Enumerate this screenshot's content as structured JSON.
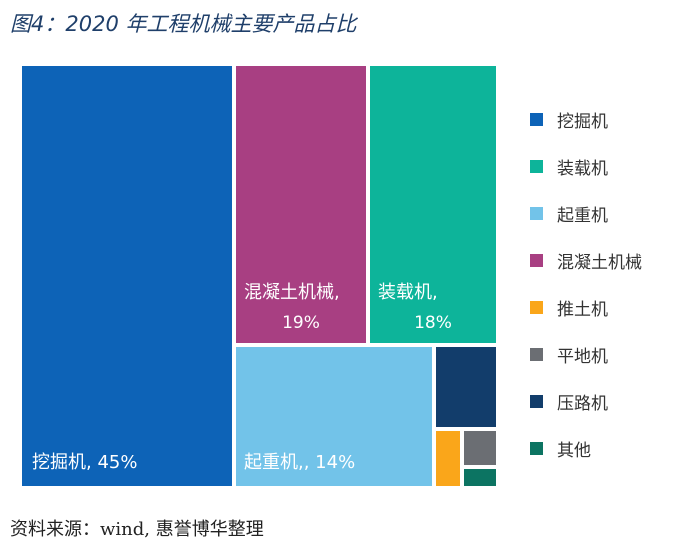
{
  "title": "图4：2020 年工程机械主要产品占比",
  "source": "资料来源：wind, 惠誉博华整理",
  "chart_data": {
    "type": "treemap",
    "title": "图4：2020 年工程机械主要产品占比",
    "legend_position": "right",
    "series": [
      {
        "name": "挖掘机",
        "value": 45,
        "color": "#0d63b7",
        "label_name": "挖掘机",
        "label_value": "45%"
      },
      {
        "name": "装载机",
        "value": 18,
        "color": "#0db49a",
        "label_name": "装载机,",
        "label_value": "18%"
      },
      {
        "name": "起重机",
        "value": 14,
        "color": "#72c3e9",
        "label_name": "起重机,",
        "label_value": "14%"
      },
      {
        "name": "混凝土机械",
        "value": 19,
        "color": "#a83f82",
        "label_name": "混凝土机械,",
        "label_value": "19%"
      },
      {
        "name": "推土机",
        "value": 1,
        "color": "#faa61a",
        "label_name": "",
        "label_value": ""
      },
      {
        "name": "平地机",
        "value": 1,
        "color": "#6b6e73",
        "label_name": "",
        "label_value": ""
      },
      {
        "name": "压路机",
        "value": 4,
        "color": "#123d6b",
        "label_name": "",
        "label_value": ""
      },
      {
        "name": "其他",
        "value": 1,
        "color": "#0c7462",
        "label_name": "",
        "label_value": ""
      }
    ]
  }
}
